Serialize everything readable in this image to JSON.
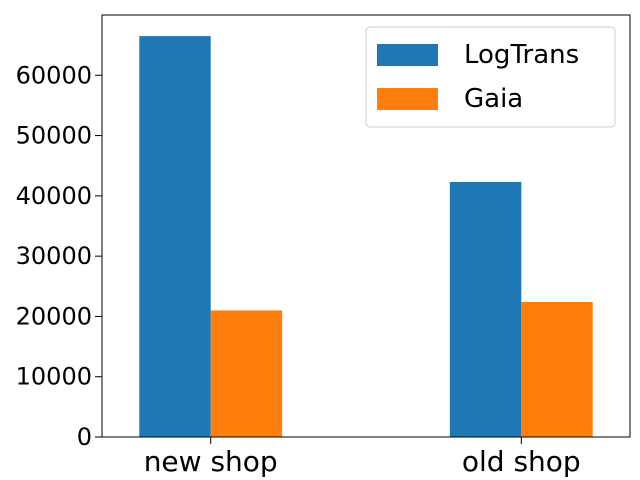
{
  "chart_data": {
    "type": "bar",
    "categories": [
      "new shop",
      "old shop"
    ],
    "series": [
      {
        "name": "LogTrans",
        "values": [
          66500,
          42300
        ],
        "color": "#1f77b4"
      },
      {
        "name": "Gaia",
        "values": [
          21000,
          22400
        ],
        "color": "#ff7f0e"
      }
    ],
    "yticks": [
      0,
      10000,
      20000,
      30000,
      40000,
      50000,
      60000
    ],
    "ylim": [
      0,
      70000
    ],
    "title": "",
    "xlabel": "",
    "ylabel": "",
    "grid": false,
    "legend_position": "top-right"
  }
}
